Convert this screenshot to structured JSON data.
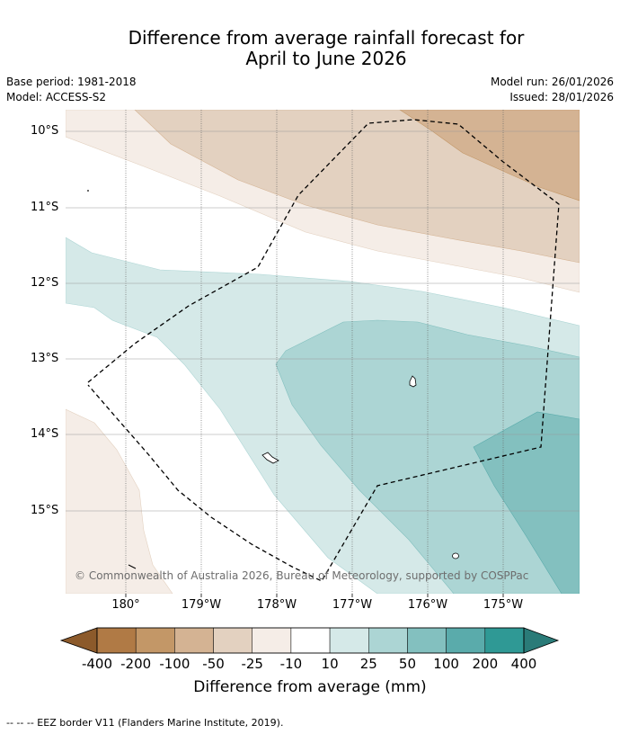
{
  "title_line1": "Difference from average rainfall forecast for",
  "title_line2": "April to June 2026",
  "meta_left": [
    "Base period: 1981-2018",
    "Model: ACCESS-S2"
  ],
  "meta_right": [
    "Model run: 26/01/2026",
    "Issued: 28/01/2026"
  ],
  "latitude_labels": [
    "10°S",
    "11°S",
    "12°S",
    "13°S",
    "14°S",
    "15°S"
  ],
  "longitude_labels": [
    "180°",
    "179°W",
    "178°W",
    "177°W",
    "176°W",
    "175°W"
  ],
  "copyright": "© Commonwealth of Australia 2026, Bureau of Meteorology, supported by COSPPac",
  "colorbar": {
    "tick_labels": [
      "-400",
      "-200",
      "-100",
      "-50",
      "-25",
      "-10",
      "10",
      "25",
      "50",
      "100",
      "200",
      "400"
    ],
    "colors": [
      "#8c5a2b",
      "#b07a45",
      "#c39767",
      "#d4b393",
      "#e3d1c0",
      "#f5ede7",
      "#ffffff",
      "#d5e9e8",
      "#acd5d4",
      "#83c0bf",
      "#5aabab",
      "#2f9995",
      "#2a7b78"
    ],
    "label": "Difference from average (mm)"
  },
  "footnote": "-- -- -- EEZ border V11 (Flanders Marine Institute, 2019)."
}
